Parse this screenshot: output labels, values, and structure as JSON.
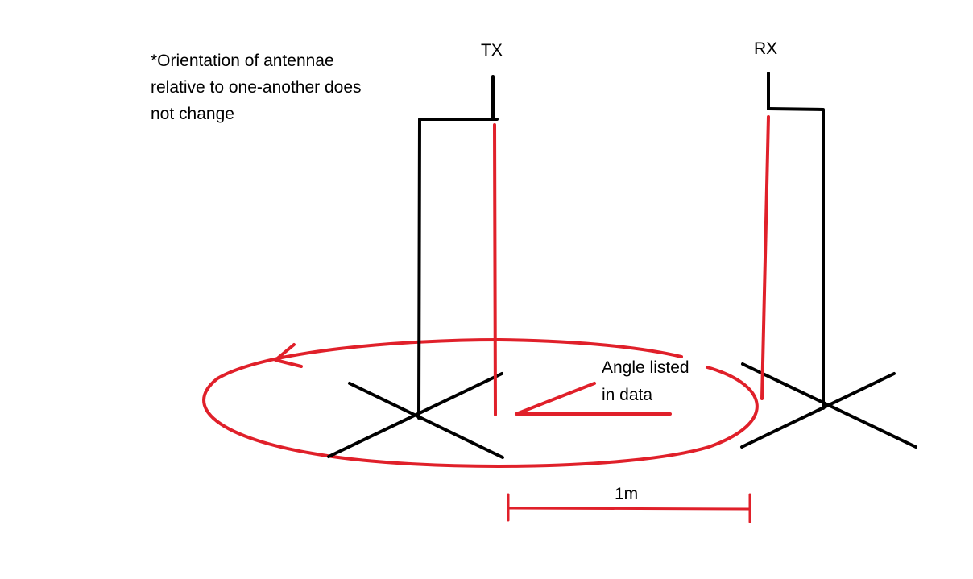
{
  "note": {
    "lines": [
      "*Orientation of antennae",
      "relative to one-another does",
      "not change"
    ]
  },
  "antennas": {
    "tx_label": "TX",
    "rx_label": "RX"
  },
  "rotation": {
    "annotation_lines": [
      "Angle listed",
      "in data"
    ]
  },
  "distance": {
    "label": "1m"
  },
  "colors": {
    "structure": "#000000",
    "highlight": "#e0202a",
    "background": "#ffffff"
  }
}
